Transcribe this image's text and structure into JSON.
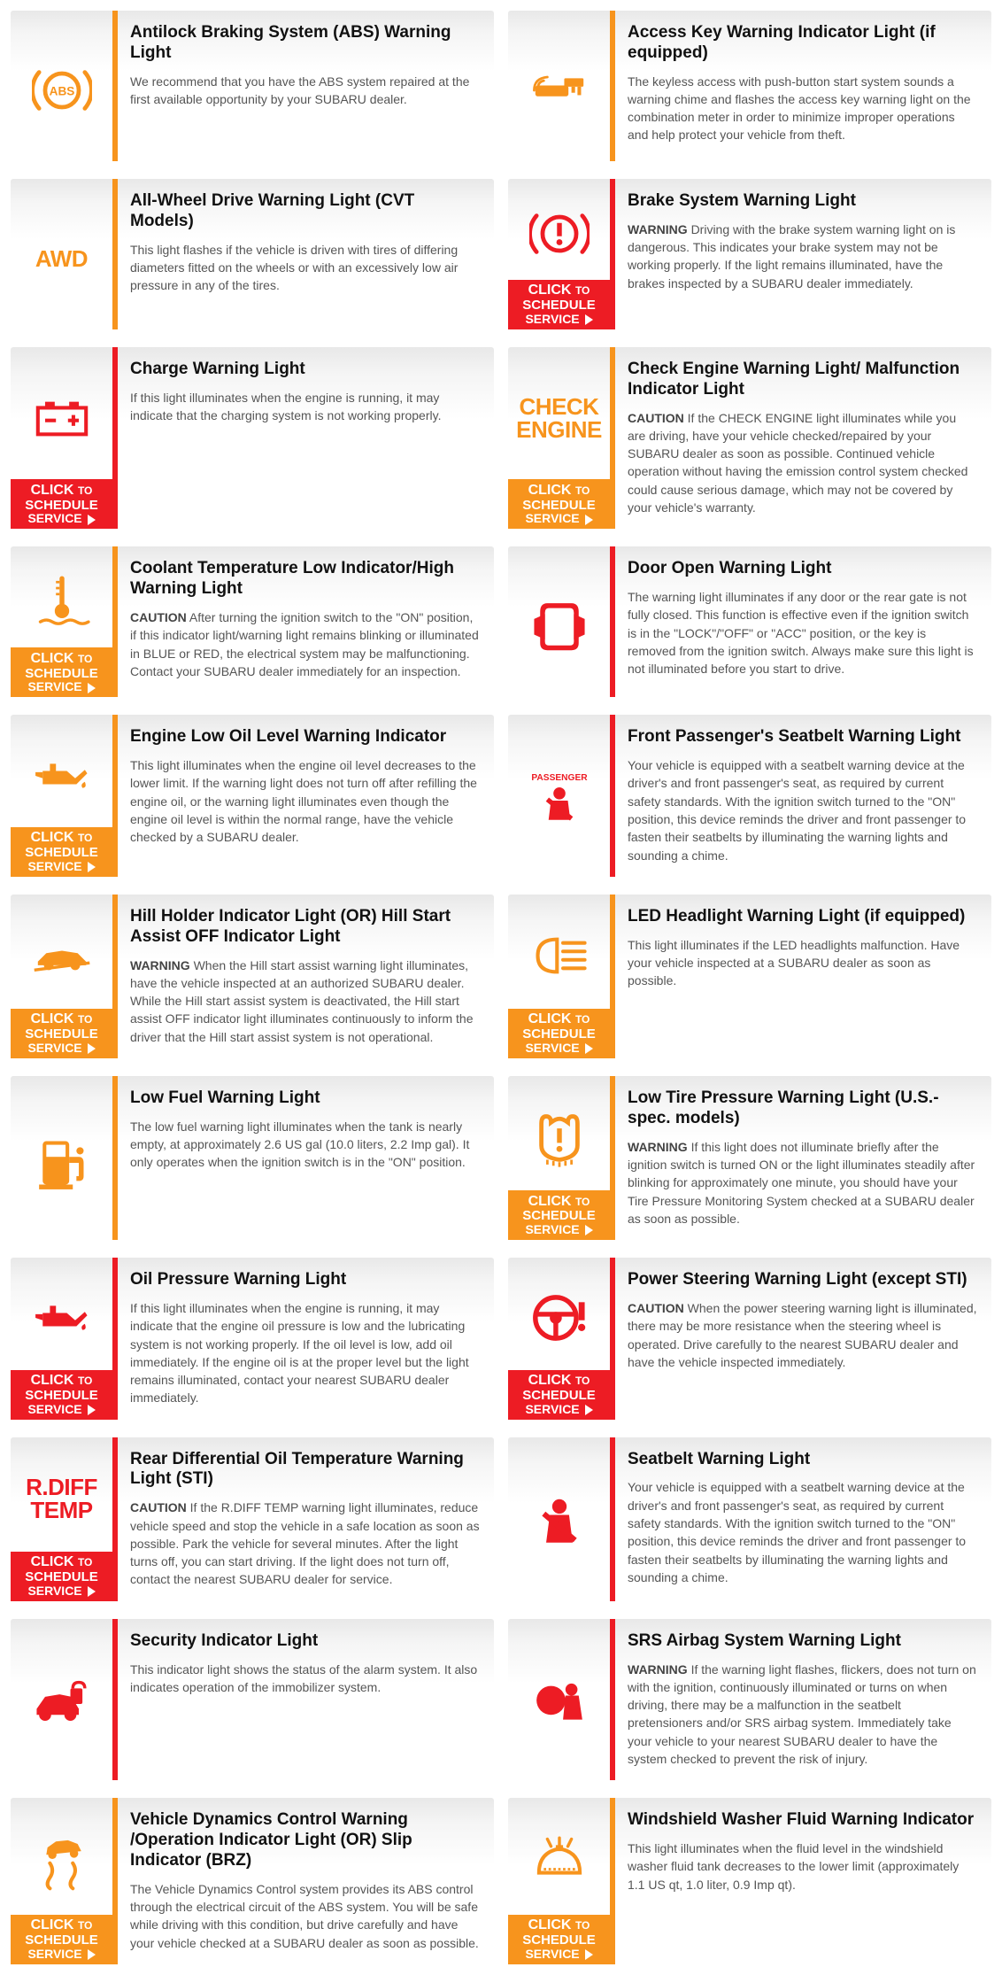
{
  "cta_label": {
    "l1a": "CLICK",
    "l1b": "TO",
    "l2": "SCHEDULE",
    "l3": "SERVICE"
  },
  "colors": {
    "orange": "#f7941d",
    "red": "#ed1c24"
  },
  "cards": [
    {
      "icon": "abs",
      "iconColor": "orange",
      "bar": "orange",
      "cta": null,
      "title": "Antilock Braking System (ABS) Warning Light",
      "desc": "We recommend that you have the ABS system repaired at the first available opportunity by your SUBARU dealer."
    },
    {
      "icon": "key",
      "iconColor": "orange",
      "bar": "orange",
      "cta": null,
      "title": "Access Key Warning Indicator Light (if equipped)",
      "desc": "The keyless access with push-button start system sounds a warning chime and flashes the access key warning light on the combination meter in order to minimize improper operations and help protect your vehicle from theft."
    },
    {
      "icon": "awd",
      "iconColor": "orange",
      "bar": "orange",
      "cta": null,
      "title": "All-Wheel Drive Warning Light (CVT Models)",
      "desc": "This light flashes if the vehicle is driven with tires of differing diameters fitted on the wheels or with an excessively low air pressure in any of the tires."
    },
    {
      "icon": "brake",
      "iconColor": "red",
      "bar": "red",
      "cta": "red",
      "title": "Brake System Warning Light",
      "boldPrefix": "WARNING",
      "desc": "Driving with the brake system warning light on is dangerous. This indicates your brake system may not be working properly. If the light remains illuminated, have the brakes inspected by a SUBARU dealer immediately."
    },
    {
      "icon": "battery",
      "iconColor": "red",
      "bar": "red",
      "cta": "red",
      "title": "Charge Warning Light",
      "desc": "If this light illuminates when the engine is running, it may indicate that the charging system is not working properly."
    },
    {
      "icon": "check",
      "iconColor": "orange",
      "bar": "orange",
      "cta": "orange",
      "title": "Check Engine Warning Light/ Malfunction Indicator Light",
      "boldPrefix": "CAUTION",
      "desc": "If the CHECK ENGINE light illuminates while you are driving, have your vehicle checked/repaired by your SUBARU dealer as soon as possible. Continued vehicle operation without having the emission control system checked could cause serious damage, which may not be covered by your vehicle's warranty."
    },
    {
      "icon": "temp",
      "iconColor": "orange",
      "bar": "orange",
      "cta": "orange",
      "title": "Coolant Temperature Low Indicator/High Warning Light",
      "boldPrefix": "CAUTION",
      "desc": "After turning the ignition switch to the \"ON\" position, if this indicator light/warning light remains blinking or illuminated in BLUE or RED, the electrical system may be malfunctioning. Contact your SUBARU dealer immediately for an inspection."
    },
    {
      "icon": "door",
      "iconColor": "red",
      "bar": "red",
      "cta": null,
      "title": "Door Open Warning Light",
      "desc": "The warning light illuminates if any door or the rear gate is not fully closed. This function is effective even if the ignition switch is in the \"LOCK\"/\"OFF\" or \"ACC\" position, or the key is removed from the ignition switch. Always make sure this light is not illuminated before you start to drive."
    },
    {
      "icon": "oilcan",
      "iconColor": "orange",
      "bar": "orange",
      "cta": "orange",
      "title": "Engine Low Oil Level Warning Indicator",
      "desc": "This light illuminates when the engine oil level decreases to the lower limit. If the warning light does not turn off after refilling the engine oil, or the warning light illuminates even though the engine oil level is within the normal range, have the vehicle checked by a SUBARU dealer."
    },
    {
      "icon": "passenger",
      "iconColor": "red",
      "bar": "red",
      "cta": null,
      "title": "Front Passenger's Seatbelt Warning Light",
      "desc": "Your vehicle is equipped with a seatbelt warning device at the driver's and front passenger's seat, as required by current safety standards. With the ignition switch turned to the \"ON\" position, this device reminds the driver and front passenger to fasten their seatbelts by illuminating the warning lights and sounding a chime."
    },
    {
      "icon": "hillcar",
      "iconColor": "orange",
      "bar": "orange",
      "cta": "orange",
      "title": "Hill Holder Indicator Light (OR) Hill Start Assist OFF Indicator Light",
      "boldPrefix": "WARNING",
      "desc": "When the Hill start assist warning light illuminates, have the vehicle inspected at an authorized SUBARU dealer. While the Hill start assist system is deactivated, the Hill start assist OFF indicator light illuminates continuously to inform the driver that the Hill start assist system is not operational."
    },
    {
      "icon": "headlight",
      "iconColor": "orange",
      "bar": "orange",
      "cta": "orange",
      "title": "LED Headlight Warning Light (if equipped)",
      "desc": "This light illuminates if the LED headlights malfunction. Have your vehicle inspected at a SUBARU dealer as soon as possible."
    },
    {
      "icon": "fuel",
      "iconColor": "orange",
      "bar": "orange",
      "cta": null,
      "title": "Low Fuel Warning Light",
      "desc": "The low fuel warning light illuminates when the tank is nearly empty, at approximately 2.6 US gal (10.0 liters, 2.2 Imp gal). It only operates when the ignition switch is in the \"ON\" position."
    },
    {
      "icon": "tire",
      "iconColor": "orange",
      "bar": "orange",
      "cta": "orange",
      "title": "Low Tire Pressure Warning Light (U.S.-spec. models)",
      "boldPrefix": "WARNING",
      "desc": "If this light does not illuminate briefly after the ignition switch is turned ON or the light illuminates steadily after blinking for approximately one minute, you should have your Tire Pressure Monitoring System checked at a SUBARU dealer as soon as possible."
    },
    {
      "icon": "oilpress",
      "iconColor": "red",
      "bar": "red",
      "cta": "red",
      "title": "Oil Pressure Warning Light",
      "desc": "If this light illuminates when the engine is running, it may indicate that the engine oil pressure is low and the lubricating system is not working properly. If the oil level is low, add oil immediately. If the engine oil is at the proper level but the light remains illuminated, contact your nearest SUBARU dealer immediately."
    },
    {
      "icon": "steering",
      "iconColor": "red",
      "bar": "red",
      "cta": "red",
      "title": "Power Steering Warning Light (except STI)",
      "boldPrefix": "CAUTION",
      "desc": "When the power steering warning light is illuminated, there may be more resistance when the steering wheel is operated. Drive carefully to the nearest SUBARU dealer and have the vehicle inspected immediately."
    },
    {
      "icon": "rdiff",
      "iconColor": "red",
      "bar": "red",
      "cta": "red",
      "title": "Rear Differential Oil Temperature Warning Light (STI)",
      "boldPrefix": "CAUTION",
      "desc": "If the R.DIFF TEMP warning light illuminates, reduce vehicle speed and stop the vehicle in a safe location as soon as possible. Park the vehicle for several minutes. After the light turns off, you can start driving. If the light does not turn off, contact the nearest SUBARU dealer for service."
    },
    {
      "icon": "seatbelt",
      "iconColor": "red",
      "bar": "red",
      "cta": null,
      "title": "Seatbelt Warning Light",
      "desc": "Your vehicle is equipped with a seatbelt warning device at the driver's and front passenger's seat, as required by current safety standards. With the ignition switch turned to the \"ON\" position, this device reminds the driver and front passenger to fasten their seatbelts by illuminating the warning lights and sounding a chime."
    },
    {
      "icon": "security",
      "iconColor": "red",
      "bar": "red",
      "cta": null,
      "title": "Security Indicator Light",
      "desc": "This indicator light shows the status of the alarm system. It also indicates operation of the immobilizer system."
    },
    {
      "icon": "airbag",
      "iconColor": "red",
      "bar": "red",
      "cta": null,
      "title": "SRS Airbag System Warning Light",
      "boldPrefix": "WARNING",
      "desc": "If the warning light flashes, flickers, does not turn on with the ignition, continuously illuminated or turns on when driving, there may be a malfunction in the seatbelt pretensioners and/or SRS airbag system. Immediately take your vehicle to your nearest SUBARU dealer to have the system checked to prevent the risk of injury."
    },
    {
      "icon": "vdc",
      "iconColor": "orange",
      "bar": "orange",
      "cta": "orange",
      "title": "Vehicle Dynamics Control Warning /Operation Indicator Light (OR) Slip Indicator (BRZ)",
      "desc": "The Vehicle Dynamics Control system provides its ABS control through the electrical circuit of the ABS system. You will be safe while driving with this condition, but drive carefully and have your vehicle checked at a SUBARU dealer as soon as possible."
    },
    {
      "icon": "washer",
      "iconColor": "orange",
      "bar": "orange",
      "cta": "orange",
      "title": "Windshield Washer Fluid Warning Indicator",
      "desc": "This light illuminates when the fluid level in the windshield washer fluid tank decreases to the lower limit (approximately 1.1 US qt, 1.0 liter, 0.9 Imp qt)."
    }
  ]
}
